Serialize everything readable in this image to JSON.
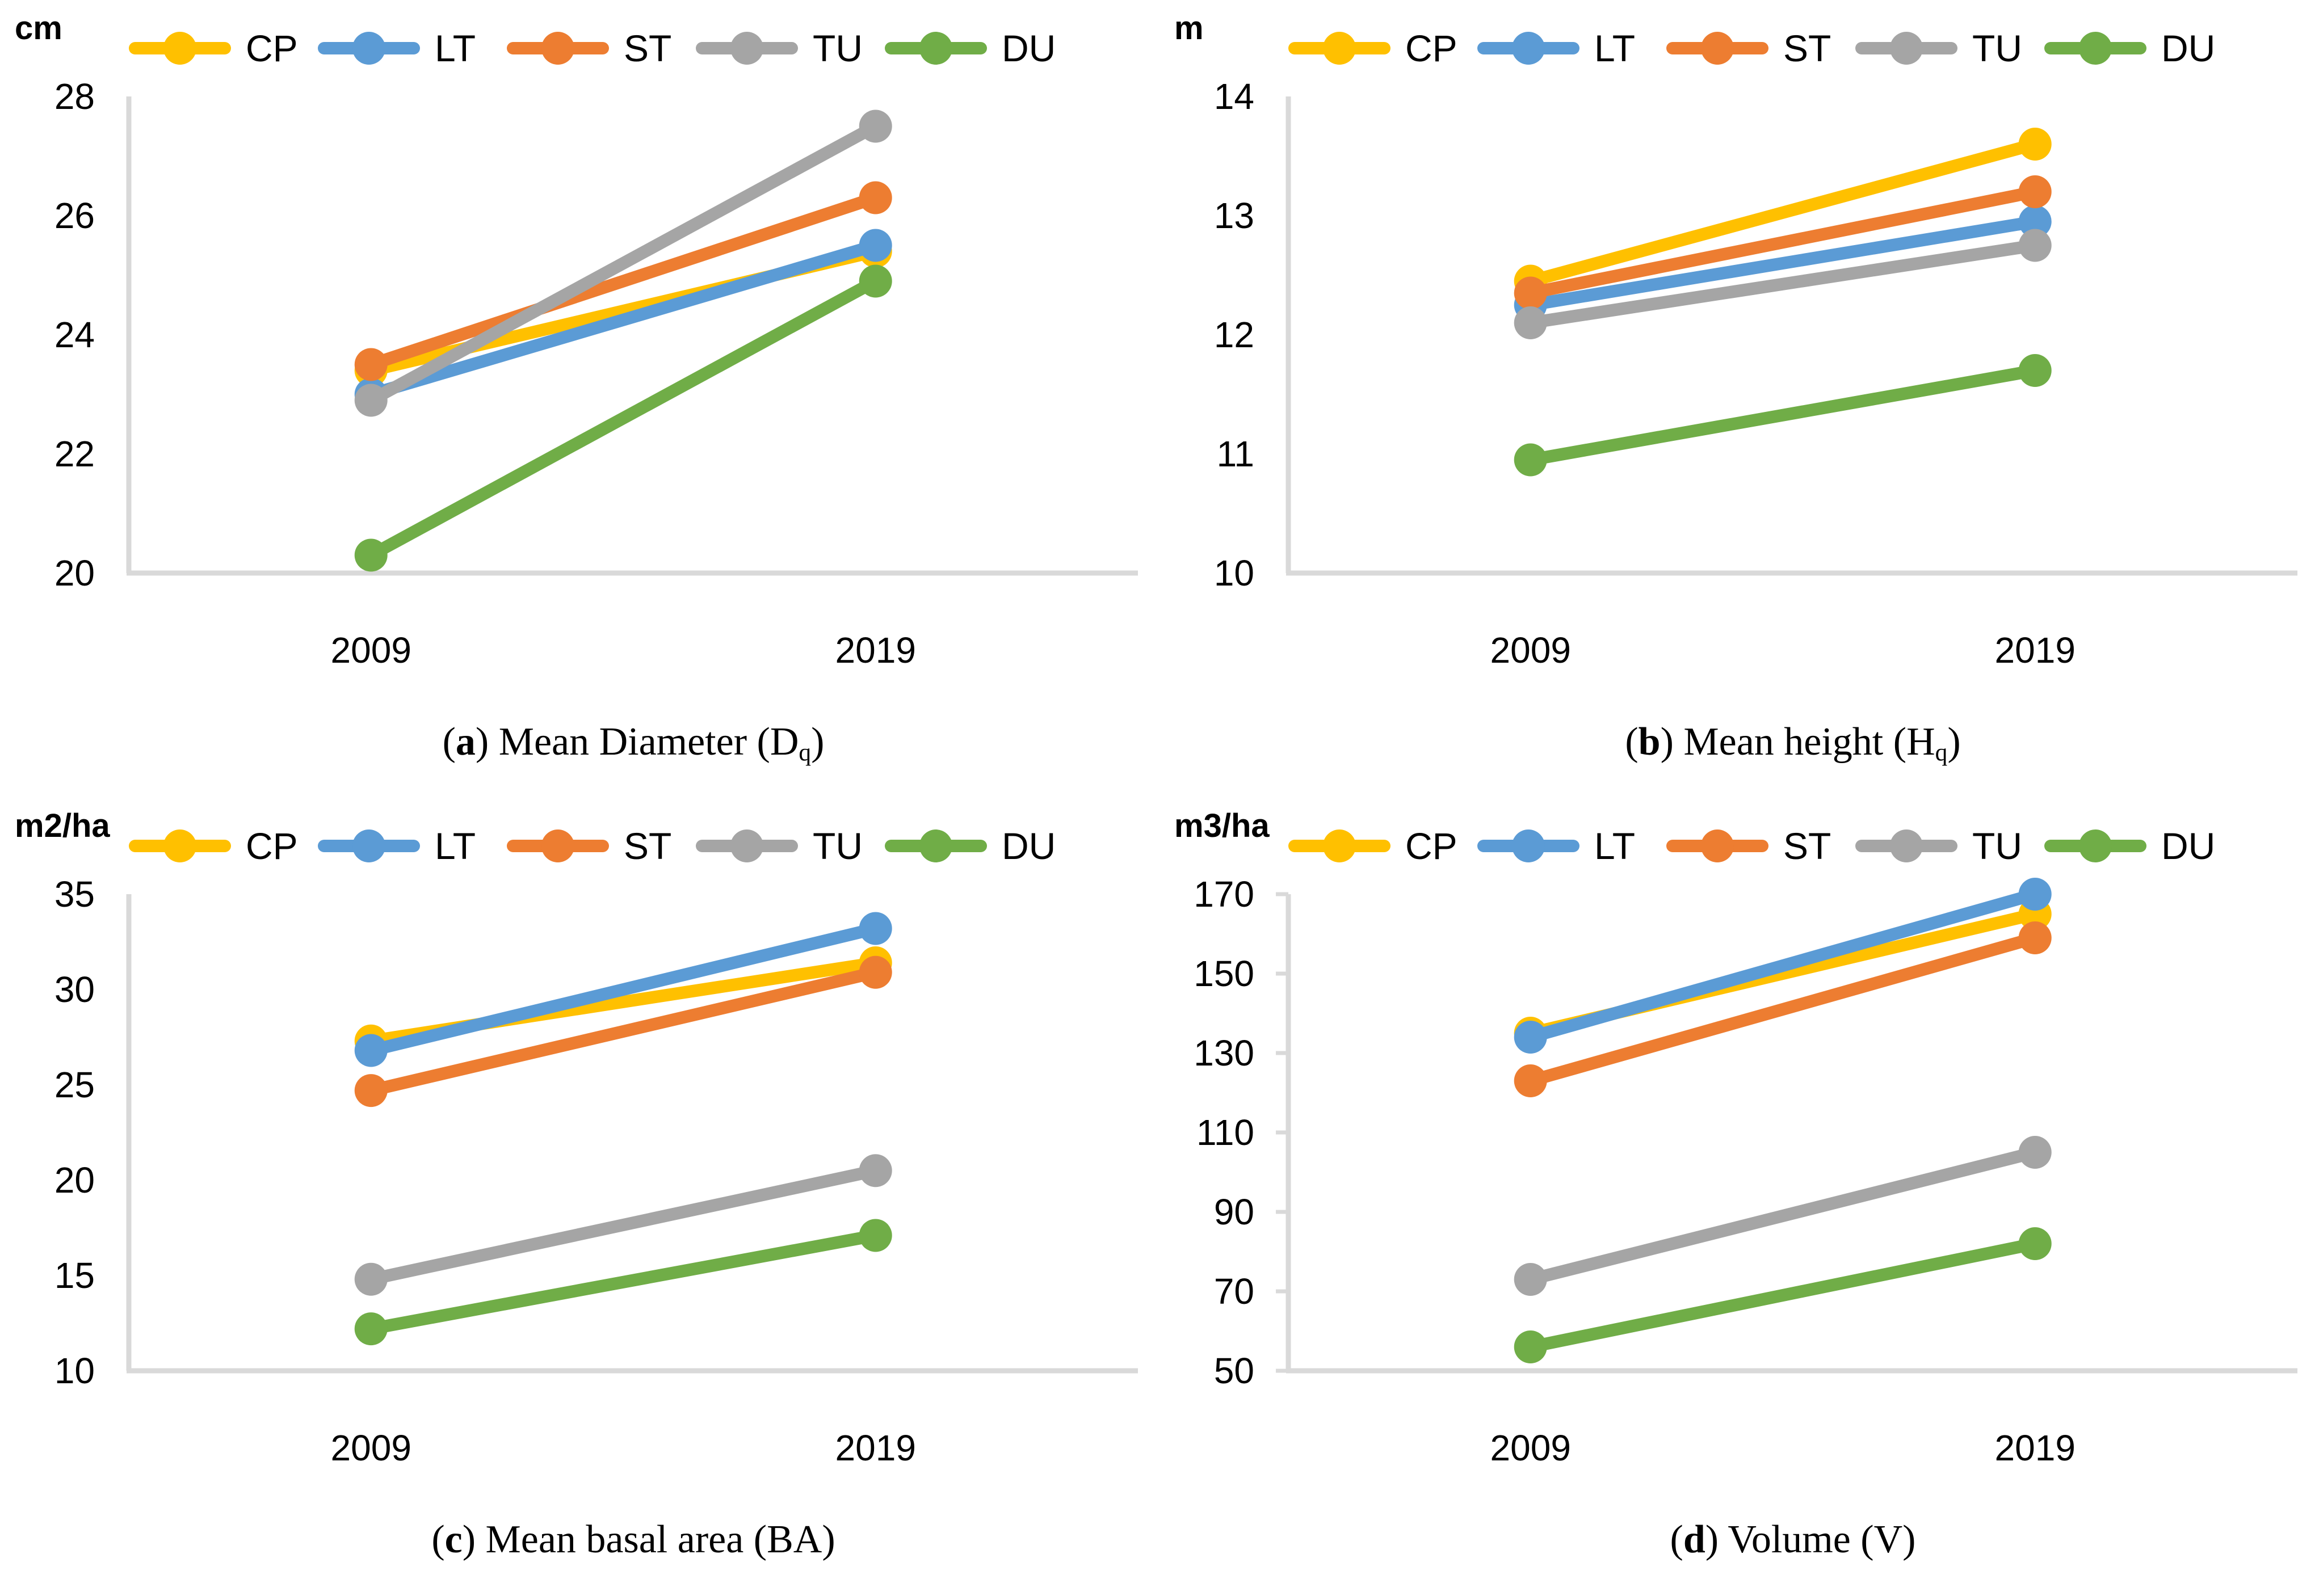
{
  "figure": {
    "background": "#ffffff",
    "axis_color": "#D9D9D9",
    "text_color": "#000000"
  },
  "legend": {
    "items": [
      {
        "label": "CP",
        "color": "#FFC000"
      },
      {
        "label": "LT",
        "color": "#5B9BD5"
      },
      {
        "label": "ST",
        "color": "#ED7D31"
      },
      {
        "label": "TU",
        "color": "#A5A5A5"
      },
      {
        "label": "DU",
        "color": "#70AD47"
      }
    ]
  },
  "chart_data": [
    {
      "id": "a",
      "type": "line",
      "unit": "cm",
      "title": "Mean Diameter (Dq)",
      "caption": {
        "open": "(",
        "letter": "a",
        "close": ") ",
        "text": "Mean Diameter (D",
        "sub": "q",
        "tail": ")"
      },
      "x_categories": [
        "2009",
        "2019"
      ],
      "ylim": [
        20,
        28
      ],
      "yticks": [
        28,
        26,
        24,
        22,
        20
      ],
      "tick_stubs": false,
      "legend_position": "top",
      "grid": false,
      "series": [
        {
          "name": "CP",
          "color": "#FFC000",
          "values": [
            23.4,
            25.4
          ]
        },
        {
          "name": "LT",
          "color": "#5B9BD5",
          "values": [
            23.0,
            25.5
          ]
        },
        {
          "name": "ST",
          "color": "#ED7D31",
          "values": [
            23.5,
            26.3
          ]
        },
        {
          "name": "TU",
          "color": "#A5A5A5",
          "values": [
            22.9,
            27.5
          ]
        },
        {
          "name": "DU",
          "color": "#70AD47",
          "values": [
            20.3,
            24.9
          ]
        }
      ]
    },
    {
      "id": "b",
      "type": "line",
      "unit": "m",
      "title": "Mean height (Hq)",
      "caption": {
        "open": "(",
        "letter": "b",
        "close": ") ",
        "text": "Mean height (H",
        "sub": "q",
        "tail": ")"
      },
      "x_categories": [
        "2009",
        "2019"
      ],
      "ylim": [
        10,
        14
      ],
      "yticks": [
        14,
        13,
        12,
        11,
        10
      ],
      "tick_stubs": false,
      "legend_position": "top",
      "grid": false,
      "series": [
        {
          "name": "CP",
          "color": "#FFC000",
          "values": [
            12.45,
            13.6
          ]
        },
        {
          "name": "LT",
          "color": "#5B9BD5",
          "values": [
            12.25,
            12.95
          ]
        },
        {
          "name": "ST",
          "color": "#ED7D31",
          "values": [
            12.35,
            13.2
          ]
        },
        {
          "name": "TU",
          "color": "#A5A5A5",
          "values": [
            12.1,
            12.75
          ]
        },
        {
          "name": "DU",
          "color": "#70AD47",
          "values": [
            10.95,
            11.7
          ]
        }
      ]
    },
    {
      "id": "c",
      "type": "line",
      "unit": "m2/ha",
      "title": "Mean basal area (BA)",
      "caption": {
        "open": "(",
        "letter": "c",
        "close": ") ",
        "text": "Mean basal area (BA)",
        "sub": "",
        "tail": ""
      },
      "x_categories": [
        "2009",
        "2019"
      ],
      "ylim": [
        10,
        35
      ],
      "yticks": [
        35,
        30,
        25,
        20,
        15,
        10
      ],
      "tick_stubs": false,
      "legend_position": "top",
      "grid": false,
      "series": [
        {
          "name": "CP",
          "color": "#FFC000",
          "values": [
            27.3,
            31.4
          ]
        },
        {
          "name": "LT",
          "color": "#5B9BD5",
          "values": [
            26.8,
            33.2
          ]
        },
        {
          "name": "ST",
          "color": "#ED7D31",
          "values": [
            24.7,
            30.9
          ]
        },
        {
          "name": "TU",
          "color": "#A5A5A5",
          "values": [
            14.8,
            20.5
          ]
        },
        {
          "name": "DU",
          "color": "#70AD47",
          "values": [
            12.2,
            17.1
          ]
        }
      ]
    },
    {
      "id": "d",
      "type": "line",
      "unit": "m3/ha",
      "title": "Volume (V)",
      "caption": {
        "open": "(",
        "letter": "d",
        "close": ") ",
        "text": "Volume (V)",
        "sub": "",
        "tail": ""
      },
      "x_categories": [
        "2009",
        "2019"
      ],
      "ylim": [
        50,
        170
      ],
      "yticks": [
        170,
        150,
        130,
        110,
        90,
        70,
        50
      ],
      "tick_stubs": true,
      "legend_position": "top",
      "grid": false,
      "series": [
        {
          "name": "CP",
          "color": "#FFC000",
          "values": [
            135,
            165
          ]
        },
        {
          "name": "LT",
          "color": "#5B9BD5",
          "values": [
            134,
            170
          ]
        },
        {
          "name": "ST",
          "color": "#ED7D31",
          "values": [
            123,
            159
          ]
        },
        {
          "name": "TU",
          "color": "#A5A5A5",
          "values": [
            73,
            105
          ]
        },
        {
          "name": "DU",
          "color": "#70AD47",
          "values": [
            56,
            82
          ]
        }
      ]
    }
  ]
}
